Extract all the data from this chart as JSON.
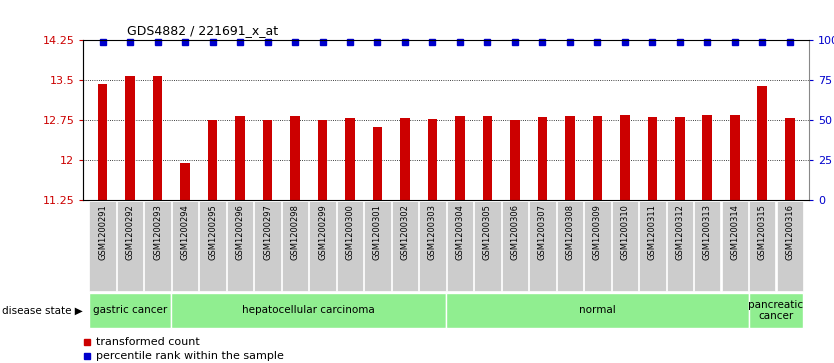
{
  "title": "GDS4882 / 221691_x_at",
  "samples": [
    "GSM1200291",
    "GSM1200292",
    "GSM1200293",
    "GSM1200294",
    "GSM1200295",
    "GSM1200296",
    "GSM1200297",
    "GSM1200298",
    "GSM1200299",
    "GSM1200300",
    "GSM1200301",
    "GSM1200302",
    "GSM1200303",
    "GSM1200304",
    "GSM1200305",
    "GSM1200306",
    "GSM1200307",
    "GSM1200308",
    "GSM1200309",
    "GSM1200310",
    "GSM1200311",
    "GSM1200312",
    "GSM1200313",
    "GSM1200314",
    "GSM1200315",
    "GSM1200316"
  ],
  "bar_values": [
    13.42,
    13.58,
    13.58,
    11.93,
    12.75,
    12.83,
    12.74,
    12.82,
    12.75,
    12.78,
    12.62,
    12.78,
    12.77,
    12.83,
    12.83,
    12.75,
    12.8,
    12.83,
    12.83,
    12.84,
    12.8,
    12.81,
    12.84,
    12.84,
    13.39,
    12.78
  ],
  "percentile_dots": [
    true,
    true,
    true,
    true,
    true,
    true,
    true,
    true,
    true,
    true,
    true,
    true,
    true,
    true,
    true,
    true,
    true,
    true,
    true,
    true,
    true,
    true,
    true,
    true,
    true,
    true
  ],
  "disease_groups": [
    {
      "label": "gastric cancer",
      "start": 0,
      "end": 3
    },
    {
      "label": "hepatocellular carcinoma",
      "start": 3,
      "end": 13
    },
    {
      "label": "normal",
      "start": 13,
      "end": 24
    },
    {
      "label": "pancreatic\ncancer",
      "start": 24,
      "end": 26
    }
  ],
  "ylim": [
    11.25,
    14.25
  ],
  "yticks": [
    11.25,
    12.0,
    12.75,
    13.5,
    14.25
  ],
  "ytick_labels": [
    "11.25",
    "12",
    "12.75",
    "13.5",
    "14.25"
  ],
  "right_yticks": [
    0,
    25,
    50,
    75,
    100
  ],
  "right_ytick_labels": [
    "0",
    "25",
    "50",
    "75",
    "100%"
  ],
  "bar_color": "#CC0000",
  "percentile_color": "#0000CC",
  "bg_color": "#ffffff",
  "grid_color": "#000000",
  "tick_bg_color": "#cccccc",
  "group_color": "#90EE90",
  "legend_items": [
    {
      "label": "transformed count",
      "color": "#CC0000"
    },
    {
      "label": "percentile rank within the sample",
      "color": "#0000CC"
    }
  ],
  "disease_state_label": "disease state"
}
